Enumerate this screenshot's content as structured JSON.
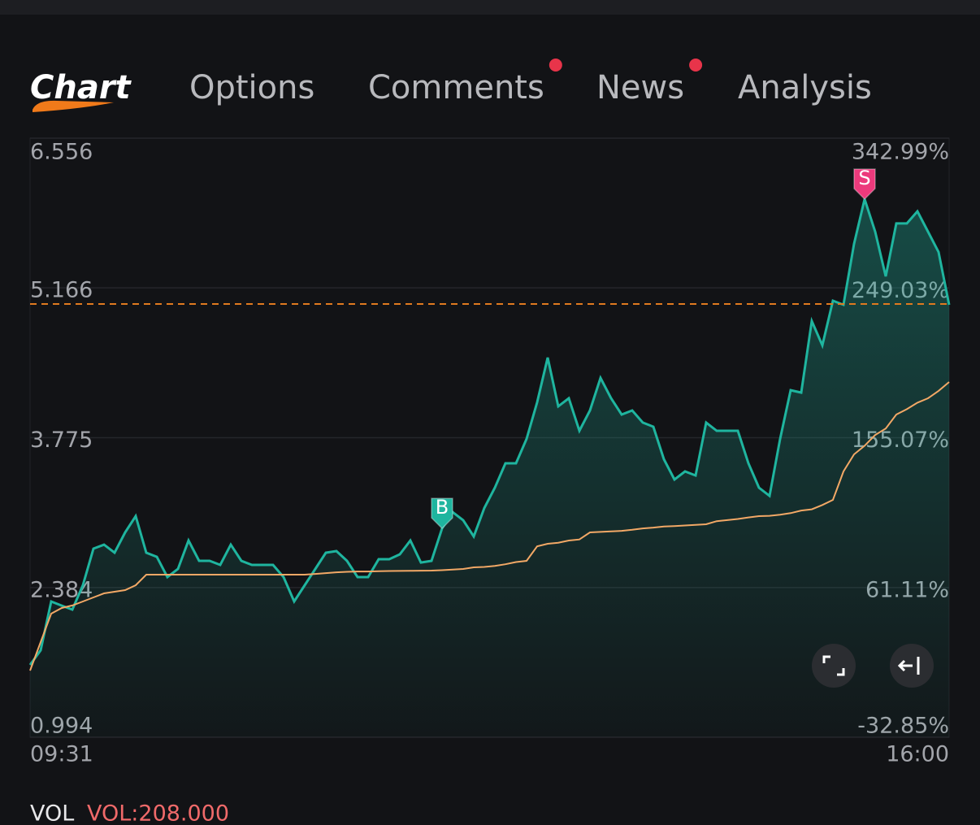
{
  "tabs": {
    "items": [
      "Chart",
      "Options",
      "Comments",
      "News",
      "Analysis"
    ],
    "active": 0,
    "badges": [
      false,
      false,
      true,
      true,
      false
    ]
  },
  "chart_data": {
    "type": "line",
    "categories": [
      "09:31",
      null,
      null,
      null,
      null,
      null,
      null,
      null,
      null,
      null,
      null,
      null,
      null,
      null,
      null,
      null,
      null,
      null,
      null,
      null,
      null,
      null,
      null,
      null,
      null,
      null,
      null,
      null,
      null,
      null,
      null,
      null,
      null,
      null,
      null,
      null,
      null,
      null,
      null,
      null,
      null,
      null,
      null,
      null,
      null,
      null,
      null,
      null,
      null,
      null,
      null,
      null,
      null,
      null,
      null,
      null,
      null,
      null,
      null,
      null,
      null,
      null,
      null,
      null,
      null,
      null,
      null,
      null,
      null,
      null,
      null,
      null,
      null,
      null,
      null,
      null,
      null,
      null,
      null,
      null,
      null,
      null,
      null,
      null,
      null,
      null,
      null,
      "16:00"
    ],
    "series": [
      {
        "color": "#1fb59f",
        "area": true,
        "values": [
          1.666,
          1.801,
          2.254,
          2.216,
          2.179,
          2.405,
          2.745,
          2.782,
          2.707,
          2.896,
          3.047,
          2.707,
          2.669,
          2.481,
          2.556,
          2.82,
          2.632,
          2.632,
          2.594,
          2.782,
          2.632,
          2.594,
          2.594,
          2.594,
          2.481,
          2.254,
          2.405,
          2.556,
          2.707,
          2.722,
          2.632,
          2.481,
          2.481,
          2.647,
          2.647,
          2.692,
          2.82,
          2.616,
          2.632,
          2.933,
          3.084,
          3.009,
          2.858,
          3.122,
          3.311,
          3.537,
          3.537,
          3.764,
          4.103,
          4.518,
          4.066,
          4.141,
          3.839,
          4.028,
          4.33,
          4.141,
          3.99,
          4.028,
          3.915,
          3.877,
          3.575,
          3.386,
          3.462,
          3.424,
          3.915,
          3.839,
          3.839,
          3.839,
          3.537,
          3.311,
          3.235,
          3.764,
          4.216,
          4.194,
          4.858,
          4.632,
          5.047,
          5.009,
          5.575,
          5.99,
          5.688,
          5.273,
          5.764,
          5.764,
          5.877,
          5.688,
          5.499,
          5.009
        ]
      },
      {
        "color": "#f2a866",
        "area": false,
        "values": [
          1.613,
          1.877,
          2.141,
          2.194,
          2.217,
          2.254,
          2.292,
          2.33,
          2.345,
          2.36,
          2.405,
          2.503,
          2.503,
          2.503,
          2.503,
          2.503,
          2.503,
          2.503,
          2.503,
          2.503,
          2.503,
          2.503,
          2.503,
          2.503,
          2.503,
          2.503,
          2.503,
          2.51,
          2.518,
          2.525,
          2.53,
          2.533,
          2.533,
          2.535,
          2.537,
          2.538,
          2.539,
          2.54,
          2.541,
          2.545,
          2.55,
          2.556,
          2.571,
          2.575,
          2.585,
          2.6,
          2.62,
          2.632,
          2.767,
          2.79,
          2.8,
          2.82,
          2.83,
          2.896,
          2.9,
          2.905,
          2.91,
          2.92,
          2.933,
          2.94,
          2.95,
          2.955,
          2.96,
          2.965,
          2.971,
          3.0,
          3.01,
          3.02,
          3.035,
          3.047,
          3.05,
          3.06,
          3.075,
          3.099,
          3.11,
          3.15,
          3.198,
          3.462,
          3.62,
          3.7,
          3.8,
          3.86,
          3.99,
          4.04,
          4.1,
          4.141,
          4.21,
          4.292
        ]
      }
    ],
    "ylim": [
      0.994,
      6.556
    ],
    "yticks": [
      6.556,
      5.166,
      3.775,
      2.384,
      0.994
    ],
    "y2lim": [
      -32.85,
      342.99
    ],
    "y2ticks": [
      {
        "value": 342.99,
        "label": "342.99%"
      },
      {
        "value": 249.03,
        "label": "249.03%"
      },
      {
        "value": 155.07,
        "label": "155.07%"
      },
      {
        "value": 61.11,
        "label": "61.11%"
      },
      {
        "value": -32.85,
        "label": "-32.85%"
      }
    ],
    "reference_line": {
      "value": 5.016,
      "color": "#e07a1f"
    },
    "markers": [
      {
        "text": "B",
        "point": 39,
        "color": "#1fb59f"
      },
      {
        "text": "S",
        "point": 79,
        "color": "#ec3a7c"
      }
    ],
    "grid": true
  },
  "volume": {
    "label": "VOL",
    "value_text": "VOL:208.000"
  }
}
